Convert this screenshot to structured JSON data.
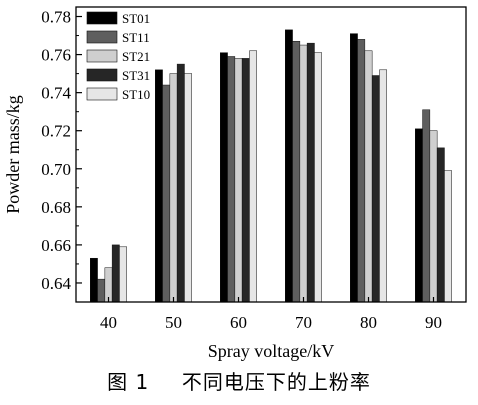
{
  "chart_data": {
    "type": "bar",
    "categories": [
      "40",
      "50",
      "60",
      "70",
      "80",
      "90"
    ],
    "xlabel": "Spray voltage/kV",
    "ylabel": "Powder mass/kg",
    "ylim": [
      0.63,
      0.785
    ],
    "yticks": [
      "0.64",
      "0.66",
      "0.68",
      "0.70",
      "0.72",
      "0.74",
      "0.76",
      "0.78"
    ],
    "ytick_values": [
      0.64,
      0.66,
      0.68,
      0.7,
      0.72,
      0.74,
      0.76,
      0.78
    ],
    "legend_position": "top-left",
    "series": [
      {
        "name": "ST01",
        "color": "#000000",
        "values": [
          0.653,
          0.752,
          0.761,
          0.773,
          0.771,
          0.721
        ]
      },
      {
        "name": "ST11",
        "color": "#5e5e5e",
        "values": [
          0.642,
          0.744,
          0.759,
          0.767,
          0.768,
          0.731
        ]
      },
      {
        "name": "ST21",
        "color": "#cfcfcf",
        "values": [
          0.648,
          0.75,
          0.758,
          0.765,
          0.762,
          0.72
        ]
      },
      {
        "name": "ST31",
        "color": "#262626",
        "values": [
          0.66,
          0.755,
          0.758,
          0.766,
          0.749,
          0.711
        ]
      },
      {
        "name": "ST10",
        "color": "#e6e6e6",
        "values": [
          0.659,
          0.75,
          0.762,
          0.761,
          0.752,
          0.699
        ]
      }
    ]
  },
  "caption": {
    "figure_number": "图 1",
    "text": "不同电压下的上粉率"
  }
}
